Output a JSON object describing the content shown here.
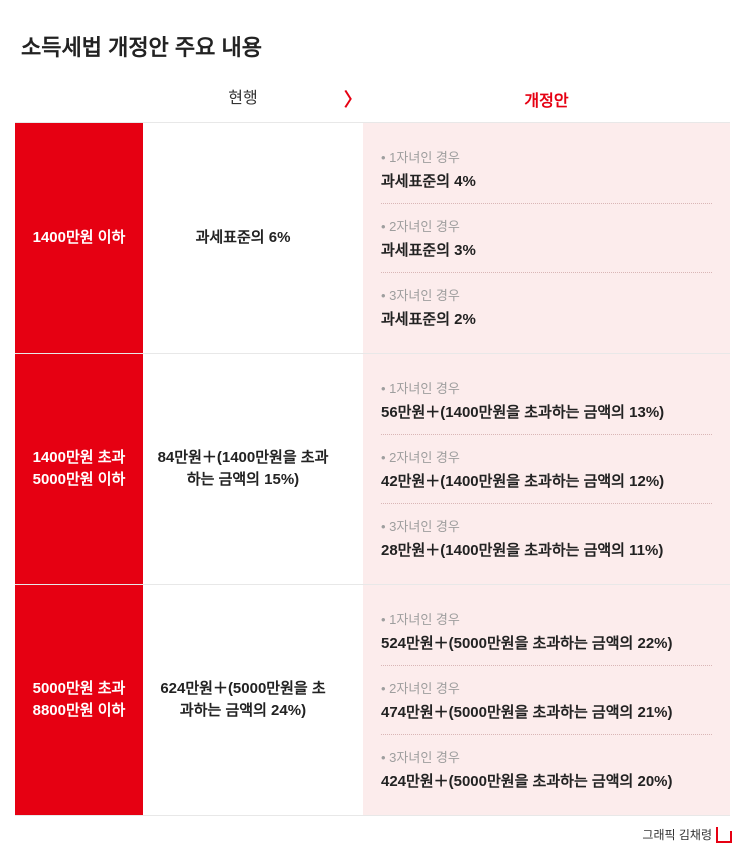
{
  "title": "소득세법 개정안 주요 내용",
  "headers": {
    "current": "현행",
    "arrow": "〉",
    "amend": "개정안"
  },
  "rows": [
    {
      "bracket": "1400만원 이하",
      "current": "과세표준의 6%",
      "amend": [
        {
          "label": "1자녀인 경우",
          "value": "과세표준의 4%"
        },
        {
          "label": "2자녀인 경우",
          "value": "과세표준의 3%"
        },
        {
          "label": "3자녀인 경우",
          "value": "과세표준의 2%"
        }
      ]
    },
    {
      "bracket": "1400만원 초과\n5000만원 이하",
      "current": "84만원＋(1400만원을 초과하는 금액의 15%)",
      "amend": [
        {
          "label": "1자녀인 경우",
          "value": "56만원＋(1400만원을 초과하는 금액의 13%)"
        },
        {
          "label": "2자녀인 경우",
          "value": "42만원＋(1400만원을 초과하는 금액의 12%)"
        },
        {
          "label": "3자녀인 경우",
          "value": "28만원＋(1400만원을 초과하는 금액의 11%)"
        }
      ]
    },
    {
      "bracket": "5000만원 초과\n8800만원 이하",
      "current": "624만원＋(5000만원을 초과하는 금액의 24%)",
      "amend": [
        {
          "label": "1자녀인 경우",
          "value": "524만원＋(5000만원을 초과하는 금액의 22%)"
        },
        {
          "label": "2자녀인 경우",
          "value": "474만원＋(5000만원을 초과하는 금액의 21%)"
        },
        {
          "label": "3자녀인 경우",
          "value": "424만원＋(5000만원을 초과하는 금액의 20%)"
        }
      ]
    }
  ],
  "credit": "그래픽 김채령",
  "colors": {
    "accent": "#e60012",
    "amend_bg": "#fcecec",
    "text": "#222222",
    "muted": "#9e9e9e",
    "divider": "#e8e8e8",
    "dotted": "#d9b6b6"
  }
}
